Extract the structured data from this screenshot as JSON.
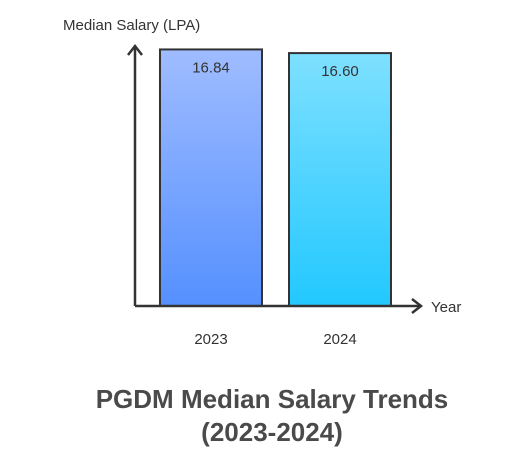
{
  "chart_data": {
    "type": "bar",
    "title_lines": [
      "PGDM Median Salary Trends",
      "(2023-2024)"
    ],
    "xlabel": "Year",
    "ylabel": "Median Salary (LPA)",
    "categories": [
      "2023",
      "2024"
    ],
    "values": [
      16.84,
      16.6
    ],
    "value_labels": [
      "16.84",
      "16.60"
    ],
    "ylim": [
      0,
      17
    ],
    "grid": false,
    "legend": "none",
    "bar_gradients": [
      {
        "top": "#9fbcff",
        "bottom": "#5590ff"
      },
      {
        "top": "#7ee0ff",
        "bottom": "#22c8ff"
      }
    ],
    "bar_outline": "#333333",
    "axis_color": "#333333"
  }
}
